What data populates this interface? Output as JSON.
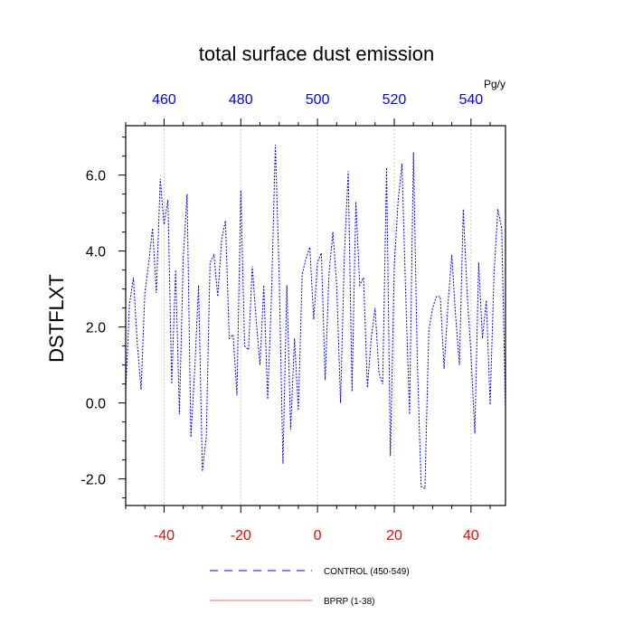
{
  "chart_data": {
    "type": "line",
    "title": "total surface dust emission",
    "ylabel": "DSTFLXT",
    "top_axis_unit": "Pg/y",
    "xlim": [
      -50,
      49
    ],
    "ylim": [
      -2.7,
      7.3
    ],
    "bottom_ticks": [
      -40,
      -20,
      0,
      20,
      40
    ],
    "top_ticks": [
      "460",
      "480",
      "500",
      "520",
      "540"
    ],
    "y_ticks": [
      -2.0,
      0.0,
      2.0,
      4.0,
      6.0
    ],
    "y_tick_labels": [
      "-2.0",
      "0.0",
      "2.0",
      "4.0",
      "6.0"
    ],
    "grid_x": true,
    "legend_position": "bottom-center",
    "colors": {
      "control": "#0000ff",
      "bprp": "#ff6666",
      "bottom_ticks": "#ff0000",
      "top_ticks": "#0000ff"
    },
    "series": [
      {
        "name": "CONTROL (450-549)",
        "x": [
          -50,
          -49,
          -48,
          -47,
          -46,
          -45,
          -44,
          -43,
          -42,
          -41,
          -40,
          -39,
          -38,
          -37,
          -36,
          -35,
          -34,
          -33,
          -32,
          -31,
          -30,
          -29,
          -28,
          -27,
          -26,
          -25,
          -24,
          -23,
          -22,
          -21,
          -20,
          -19,
          -18,
          -17,
          -16,
          -15,
          -14,
          -13,
          -12,
          -11,
          -10,
          -9,
          -8,
          -7,
          -6,
          -5,
          -4,
          -3,
          -2,
          -1,
          0,
          1,
          2,
          3,
          4,
          5,
          6,
          7,
          8,
          9,
          10,
          11,
          12,
          13,
          14,
          15,
          16,
          17,
          18,
          19,
          20,
          21,
          22,
          23,
          24,
          25,
          26,
          27,
          28,
          29,
          30,
          31,
          32,
          33,
          34,
          35,
          36,
          37,
          38,
          39,
          40,
          41,
          42,
          43,
          44,
          45,
          46,
          47,
          48,
          49
        ],
        "values": [
          0.3,
          2.6,
          3.3,
          1.6,
          0.35,
          2.9,
          3.7,
          4.6,
          2.9,
          5.9,
          4.7,
          5.35,
          0.5,
          3.5,
          -0.3,
          3.8,
          5.5,
          -0.9,
          0.9,
          3.1,
          -1.8,
          -0.9,
          3.7,
          3.9,
          2.8,
          4.3,
          4.8,
          1.7,
          1.8,
          0.2,
          5.6,
          1.5,
          1.4,
          3.6,
          2.2,
          1.0,
          3.1,
          0.1,
          2.8,
          6.8,
          3.4,
          -1.6,
          3.1,
          -0.7,
          1.7,
          -0.2,
          3.4,
          3.8,
          4.1,
          2.2,
          3.7,
          3.95,
          0.6,
          3.4,
          4.5,
          3.1,
          0.0,
          3.9,
          6.1,
          0.3,
          5.3,
          3.1,
          3.3,
          0.4,
          1.7,
          2.5,
          0.8,
          0.5,
          6.2,
          -1.4,
          3.6,
          5.3,
          6.3,
          2.8,
          -0.3,
          6.6,
          1.2,
          -2.2,
          -2.25,
          1.9,
          2.5,
          2.8,
          2.8,
          0.9,
          2.6,
          3.9,
          2.3,
          1.0,
          5.1,
          2.9,
          1.3,
          -0.8,
          3.7,
          1.7,
          2.7,
          -0.05,
          3.4,
          5.1,
          4.6,
          -0.2
        ]
      },
      {
        "name": "BPRP (1-38)",
        "x": [],
        "values": []
      }
    ]
  }
}
